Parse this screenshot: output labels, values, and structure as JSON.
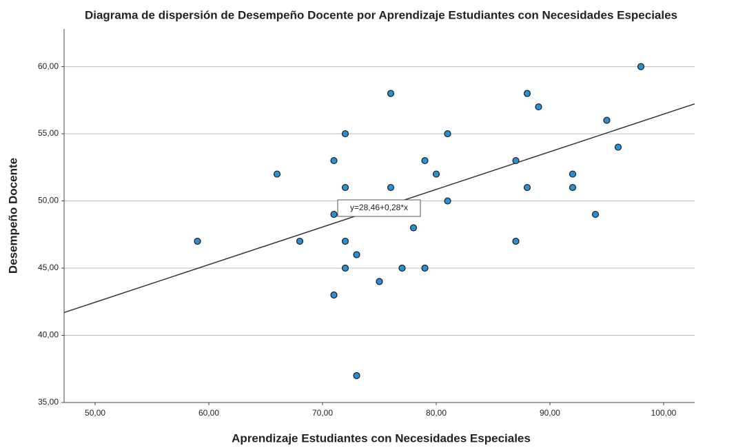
{
  "chart_data": {
    "type": "scatter",
    "title": "Diagrama de dispersión de Desempeño Docente por Aprendizaje Estudiantes con Necesidades Especiales",
    "x_label": "Aprendizaje Estudiantes con Necesidades Especiales",
    "y_label": "Desempeño Docente",
    "color": "#2a8fd4",
    "x": [
      59,
      66,
      68,
      71,
      71,
      71,
      72,
      72,
      72,
      72,
      73,
      73,
      75,
      76,
      76,
      77,
      78,
      79,
      79,
      80,
      81,
      81,
      87,
      87,
      88,
      88,
      89,
      92,
      92,
      94,
      95,
      96,
      98
    ],
    "values": [
      47,
      52,
      47,
      53,
      49,
      43,
      55,
      51,
      47,
      45,
      46,
      37,
      44,
      58,
      51,
      45,
      48,
      53,
      45,
      52,
      55,
      50,
      53,
      47,
      58,
      51,
      57,
      52,
      51,
      49,
      56,
      54,
      60
    ],
    "xlim": [
      47.27,
      102.73
    ],
    "ylim": [
      35,
      62.8
    ],
    "xticks": [
      {
        "value": 50,
        "label": "50,00"
      },
      {
        "value": 60,
        "label": "60,00"
      },
      {
        "value": 70,
        "label": "70,00"
      },
      {
        "value": 80,
        "label": "80,00"
      },
      {
        "value": 90,
        "label": "90,00"
      },
      {
        "value": 100,
        "label": "100,00"
      }
    ],
    "yticks": [
      {
        "value": 35,
        "label": "35,00"
      },
      {
        "value": 40,
        "label": "40,00"
      },
      {
        "value": 45,
        "label": "45,00"
      },
      {
        "value": 50,
        "label": "50,00"
      },
      {
        "value": 55,
        "label": "55,00"
      },
      {
        "value": 60,
        "label": "60,00"
      }
    ],
    "grid": true,
    "fit": {
      "intercept": 28.46,
      "slope": 0.28,
      "label": "y=28,46+0,28*x"
    }
  }
}
